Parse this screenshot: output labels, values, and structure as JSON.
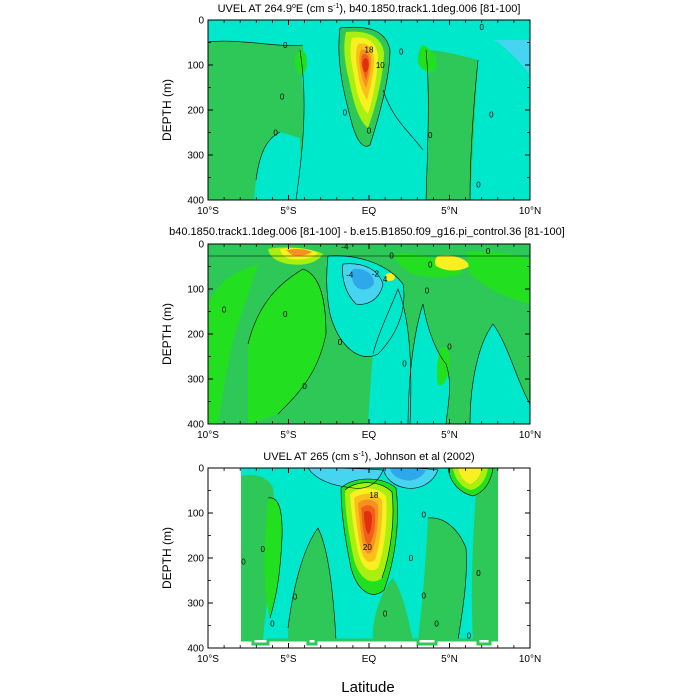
{
  "x_axis_label": "Latitude",
  "x_ticks": [
    "10°S",
    "5°S",
    "EQ",
    "5°N",
    "10°N"
  ],
  "y_ticks": [
    "0",
    "100",
    "200",
    "300",
    "400"
  ],
  "colors": {
    "c_m6": "#1a78dc",
    "c_m4": "#2ea8e8",
    "c_m2": "#46d4f0",
    "c_0": "#00e8cc",
    "c_2": "#20e0a0",
    "c_4": "#2ec858",
    "c_6": "#22e020",
    "c_8": "#a8f010",
    "c_10": "#f8f020",
    "c_12": "#f8c018",
    "c_14": "#f89020",
    "c_16": "#f06018",
    "c_18": "#e03010",
    "c_20": "#d00808",
    "c_neg": "#46d4f0",
    "c_pos": "#2ec858"
  },
  "chart_data": [
    {
      "type": "heatmap",
      "title_prefix": "UVEL AT 264.9",
      "title_sup1": "o",
      "title_mid": "E (cm s",
      "title_sup2": "-1",
      "title_suffix": "), b40.1850.track1.1deg.006 [81-100]",
      "ylabel": "DEPTH (m)",
      "xlabel": "",
      "xlim": [
        -10,
        10
      ],
      "ylim": [
        400,
        0
      ],
      "contour_labels": [
        {
          "lat": 0.0,
          "depth": 65,
          "text": "18"
        },
        {
          "lat": 0.7,
          "depth": 100,
          "text": "10"
        },
        {
          "lat": -5.2,
          "depth": 55,
          "text": "0"
        },
        {
          "lat": -5.4,
          "depth": 170,
          "text": "0"
        },
        {
          "lat": -5.8,
          "depth": 250,
          "text": "0"
        },
        {
          "lat": -1.5,
          "depth": 205,
          "text": "0"
        },
        {
          "lat": 0.0,
          "depth": 245,
          "text": "0"
        },
        {
          "lat": 3.8,
          "depth": 255,
          "text": "0"
        },
        {
          "lat": 6.8,
          "depth": 365,
          "text": "0"
        },
        {
          "lat": 7.6,
          "depth": 210,
          "text": "0"
        },
        {
          "lat": 7.0,
          "depth": 15,
          "text": "0"
        },
        {
          "lat": 2.0,
          "depth": 70,
          "text": "0"
        }
      ]
    },
    {
      "type": "heatmap",
      "title": "b40.1850.track1.1deg.006 [81-100] - b.e15.B1850.f09_g16.pi_control.36 [81-100]",
      "ylabel": "DEPTH (m)",
      "xlabel": "",
      "xlim": [
        -10,
        10
      ],
      "ylim": [
        400,
        0
      ],
      "contour_labels": [
        {
          "lat": -1.5,
          "depth": 5,
          "text": "-4"
        },
        {
          "lat": -1.2,
          "depth": 68,
          "text": "-4"
        },
        {
          "lat": 0.4,
          "depth": 65,
          "text": "-2"
        },
        {
          "lat": 1.0,
          "depth": 78,
          "text": "4"
        },
        {
          "lat": 1.4,
          "depth": 25,
          "text": "0"
        },
        {
          "lat": 3.8,
          "depth": 45,
          "text": "0"
        },
        {
          "lat": 7.4,
          "depth": 15,
          "text": "0"
        },
        {
          "lat": -9.0,
          "depth": 145,
          "text": "0"
        },
        {
          "lat": -5.2,
          "depth": 155,
          "text": "0"
        },
        {
          "lat": -1.8,
          "depth": 218,
          "text": "0"
        },
        {
          "lat": -4.0,
          "depth": 315,
          "text": "0"
        },
        {
          "lat": 2.2,
          "depth": 265,
          "text": "0"
        },
        {
          "lat": 3.6,
          "depth": 103,
          "text": "0"
        },
        {
          "lat": 5.0,
          "depth": 228,
          "text": "0"
        }
      ]
    },
    {
      "type": "heatmap",
      "title_prefix": "UVEL AT 265 (cm s",
      "title_sup2": "-1",
      "title_suffix": "), Johnson et al (2002)",
      "ylabel": "DEPTH (m)",
      "xlabel": "Latitude",
      "xlim": [
        -10,
        10
      ],
      "ylim": [
        400,
        0
      ],
      "contour_labels": [
        {
          "lat": 0.3,
          "depth": 60,
          "text": "18"
        },
        {
          "lat": -0.1,
          "depth": 175,
          "text": "20"
        },
        {
          "lat": -6.6,
          "depth": 180,
          "text": "0"
        },
        {
          "lat": -7.8,
          "depth": 208,
          "text": "0"
        },
        {
          "lat": -4.6,
          "depth": 285,
          "text": "0"
        },
        {
          "lat": -6.0,
          "depth": 345,
          "text": "0"
        },
        {
          "lat": 1.0,
          "depth": 323,
          "text": "0"
        },
        {
          "lat": 3.4,
          "depth": 283,
          "text": "0"
        },
        {
          "lat": 2.6,
          "depth": 200,
          "text": "0"
        },
        {
          "lat": 4.2,
          "depth": 345,
          "text": "0"
        },
        {
          "lat": 6.2,
          "depth": 372,
          "text": "0"
        },
        {
          "lat": 6.8,
          "depth": 233,
          "text": "0"
        },
        {
          "lat": 3.4,
          "depth": 103,
          "text": "0"
        }
      ]
    }
  ]
}
